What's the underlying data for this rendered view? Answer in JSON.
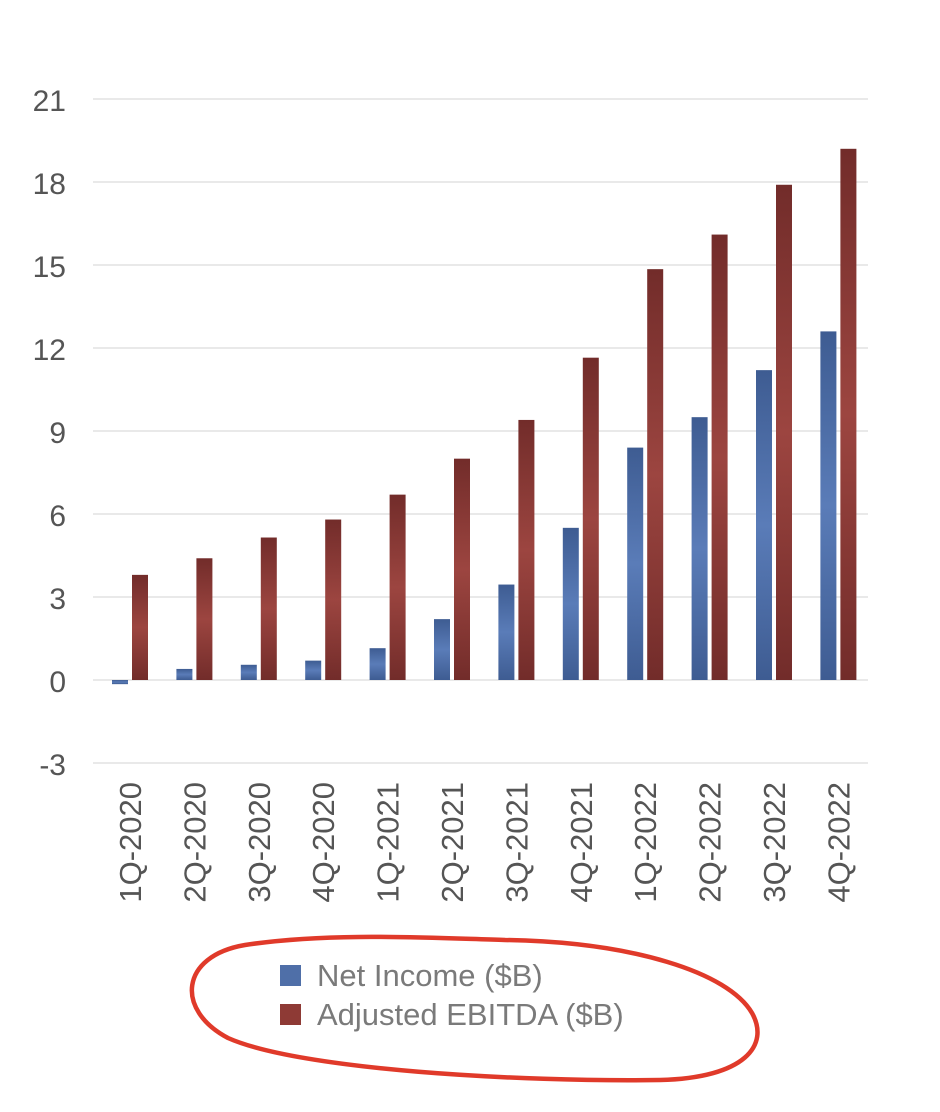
{
  "chart_data": {
    "type": "bar",
    "title": "",
    "xlabel": "",
    "ylabel": "",
    "ylim": [
      -3,
      21
    ],
    "yticks": [
      -3,
      0,
      3,
      6,
      9,
      12,
      15,
      18,
      21
    ],
    "grid": true,
    "legend_position": "bottom-center",
    "categories": [
      "1Q-2020",
      "2Q-2020",
      "3Q-2020",
      "4Q-2020",
      "1Q-2021",
      "2Q-2021",
      "3Q-2021",
      "4Q-2021",
      "1Q-2022",
      "2Q-2022",
      "3Q-2022",
      "4Q-2022"
    ],
    "series": [
      {
        "name": "Net Income ($B)",
        "color": "#4F6FA8",
        "values": [
          -0.15,
          0.4,
          0.55,
          0.7,
          1.15,
          2.2,
          3.45,
          5.5,
          8.4,
          9.5,
          11.2,
          12.6
        ]
      },
      {
        "name": "Adjusted EBITDA ($B)",
        "color": "#8E3A35",
        "values": [
          3.8,
          4.4,
          5.15,
          5.8,
          6.7,
          8.0,
          9.4,
          11.65,
          14.85,
          16.1,
          17.9,
          19.2
        ]
      }
    ]
  },
  "annotation": {
    "color": "#E03A2A"
  }
}
